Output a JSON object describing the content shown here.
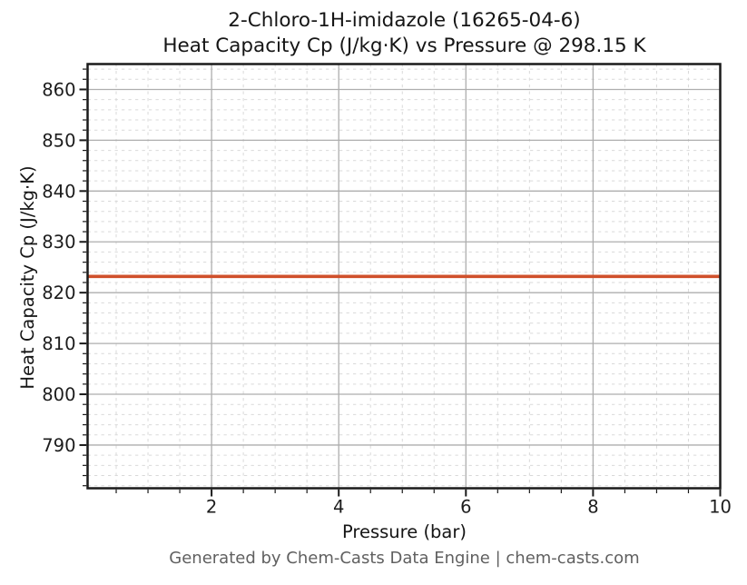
{
  "figure": {
    "title_line1": "2-Chloro-1H-imidazole (16265-04-6)",
    "title_line2": "Heat Capacity Cp (J/kg·K) vs Pressure @ 298.15 K",
    "footer": "Generated by Chem-Casts Data Engine | chem-casts.com"
  },
  "chart_data": {
    "type": "line",
    "title": "2-Chloro-1H-imidazole (16265-04-6)\nHeat Capacity Cp (J/kg·K) vs Pressure @ 298.15 K",
    "xlabel": "Pressure (bar)",
    "ylabel": "Heat Capacity Cp (J/kg·K)",
    "xlim": [
      0.05,
      10
    ],
    "ylim": [
      781.5,
      865
    ],
    "x_ticks_major": [
      2,
      4,
      6,
      8,
      10
    ],
    "x_tick_minor_step": 0.5,
    "y_ticks_major": [
      790,
      800,
      810,
      820,
      830,
      840,
      850,
      860
    ],
    "y_tick_minor_step": 2,
    "grid": {
      "major": true,
      "minor": true,
      "major_color": "#aeaeae",
      "minor_color": "#d9d9d9",
      "minor_dashed": true
    },
    "axes": {
      "spine_color": "#1a1a1a",
      "tick_color": "#1a1a1a",
      "label_color": "#1c1c1c"
    },
    "legend": null,
    "series": [
      {
        "name": "Heat Capacity Cp",
        "color": "#d0502b",
        "line_width": 3.6,
        "x": [
          0.05,
          1,
          2,
          3,
          4,
          5,
          6,
          7,
          8,
          9,
          10
        ],
        "y": [
          823.2,
          823.2,
          823.2,
          823.2,
          823.2,
          823.2,
          823.2,
          823.2,
          823.2,
          823.2,
          823.2
        ]
      }
    ]
  }
}
